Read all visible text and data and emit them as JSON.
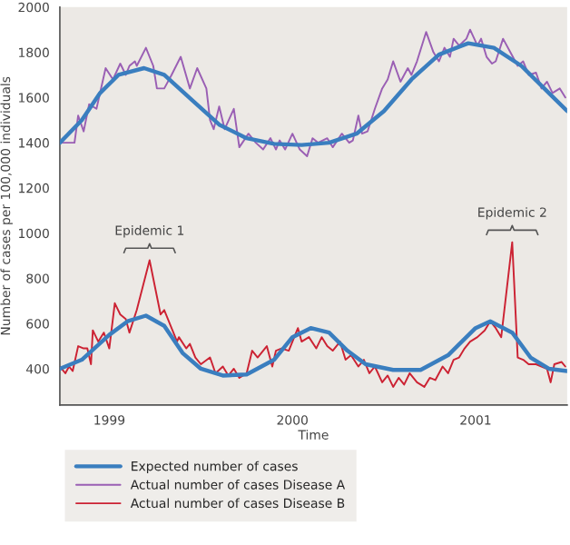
{
  "chart_data": {
    "type": "line",
    "xlabel": "Time",
    "ylabel": "Number of cases per 100,000 individuals",
    "xlim": [
      1998.73,
      2001.5
    ],
    "xticks": [
      1999,
      2000,
      2001
    ],
    "ylim": [
      240,
      2000
    ],
    "yticks": [
      400,
      600,
      800,
      1000,
      1200,
      1400,
      1600,
      1800,
      2000
    ],
    "grid": false,
    "legend": "bottom",
    "marker": "none",
    "line_style": "solid",
    "series": [
      {
        "name": "Expected number of cases",
        "color": "#3a7ebf",
        "x": [
          1998.73,
          1998.85,
          1998.95,
          1999.05,
          1999.19,
          1999.3,
          1999.45,
          1999.6,
          1999.75,
          1999.9,
          2000.05,
          2000.2,
          2000.35,
          2000.5,
          2000.65,
          2000.8,
          2000.96,
          2001.1,
          2001.25,
          2001.4,
          2001.5
        ],
        "values": [
          1400,
          1500,
          1620,
          1700,
          1730,
          1700,
          1590,
          1480,
          1420,
          1395,
          1390,
          1400,
          1440,
          1540,
          1680,
          1790,
          1840,
          1820,
          1740,
          1620,
          1540
        ]
      },
      {
        "name": null,
        "color": "#3a7ebf",
        "x": [
          1998.73,
          1998.85,
          1999.0,
          1999.1,
          1999.2,
          1999.3,
          1999.4,
          1999.5,
          1999.62,
          1999.75,
          1999.9,
          2000.0,
          2000.1,
          2000.2,
          2000.3,
          2000.4,
          2000.55,
          2000.7,
          2000.85,
          2001.0,
          2001.08,
          2001.2,
          2001.3,
          2001.4,
          2001.5
        ],
        "values": [
          400,
          440,
          550,
          610,
          635,
          590,
          470,
          400,
          370,
          375,
          440,
          540,
          580,
          560,
          480,
          420,
          395,
          395,
          460,
          580,
          610,
          560,
          450,
          400,
          390
        ]
      },
      {
        "name": "Actual number of cases Disease A",
        "color": "#9a5fb4",
        "x": [
          1998.73,
          1998.81,
          1998.83,
          1998.86,
          1998.89,
          1998.93,
          1998.98,
          1999.02,
          1999.06,
          1999.09,
          1999.11,
          1999.14,
          1999.15,
          1999.2,
          1999.24,
          1999.26,
          1999.3,
          1999.34,
          1999.39,
          1999.44,
          1999.48,
          1999.53,
          1999.55,
          1999.57,
          1999.6,
          1999.63,
          1999.68,
          1999.71,
          1999.76,
          1999.8,
          1999.84,
          1999.88,
          1999.91,
          1999.93,
          1999.96,
          2000.0,
          2000.04,
          2000.08,
          2000.11,
          2000.14,
          2000.19,
          2000.22,
          2000.27,
          2000.31,
          2000.33,
          2000.36,
          2000.38,
          2000.41,
          2000.45,
          2000.49,
          2000.52,
          2000.55,
          2000.59,
          2000.63,
          2000.65,
          2000.68,
          2000.73,
          2000.77,
          2000.8,
          2000.83,
          2000.86,
          2000.88,
          2000.91,
          2000.95,
          2000.97,
          2001.01,
          2001.03,
          2001.06,
          2001.09,
          2001.11,
          2001.15,
          2001.19,
          2001.23,
          2001.26,
          2001.29,
          2001.33,
          2001.36,
          2001.39,
          2001.42,
          2001.46,
          2001.49
        ],
        "values": [
          1400,
          1400,
          1520,
          1450,
          1570,
          1550,
          1730,
          1680,
          1750,
          1700,
          1740,
          1760,
          1740,
          1820,
          1740,
          1640,
          1640,
          1700,
          1780,
          1640,
          1730,
          1640,
          1500,
          1460,
          1560,
          1460,
          1550,
          1380,
          1440,
          1400,
          1370,
          1420,
          1370,
          1410,
          1370,
          1440,
          1370,
          1340,
          1420,
          1400,
          1420,
          1380,
          1440,
          1400,
          1410,
          1520,
          1440,
          1450,
          1550,
          1640,
          1680,
          1760,
          1670,
          1730,
          1700,
          1760,
          1890,
          1800,
          1760,
          1820,
          1780,
          1860,
          1830,
          1860,
          1900,
          1830,
          1860,
          1780,
          1750,
          1760,
          1860,
          1800,
          1740,
          1760,
          1700,
          1710,
          1640,
          1670,
          1620,
          1640,
          1600
        ]
      },
      {
        "name": "Actual number of cases Disease B",
        "color": "#cc2233",
        "x": [
          1998.73,
          1998.76,
          1998.78,
          1998.8,
          1998.83,
          1998.86,
          1998.88,
          1998.9,
          1998.91,
          1998.94,
          1998.97,
          1999.0,
          1999.03,
          1999.06,
          1999.09,
          1999.11,
          1999.15,
          1999.22,
          1999.28,
          1999.3,
          1999.35,
          1999.37,
          1999.38,
          1999.42,
          1999.44,
          1999.47,
          1999.5,
          1999.55,
          1999.58,
          1999.62,
          1999.65,
          1999.68,
          1999.71,
          1999.75,
          1999.78,
          1999.81,
          1999.86,
          1999.89,
          1999.91,
          1999.94,
          1999.98,
          2000.0,
          2000.03,
          2000.05,
          2000.09,
          2000.13,
          2000.16,
          2000.19,
          2000.22,
          2000.26,
          2000.29,
          2000.32,
          2000.36,
          2000.39,
          2000.42,
          2000.45,
          2000.49,
          2000.52,
          2000.55,
          2000.58,
          2000.61,
          2000.64,
          2000.68,
          2000.72,
          2000.75,
          2000.78,
          2000.82,
          2000.85,
          2000.88,
          2000.91,
          2000.94,
          2000.97,
          2001.01,
          2001.05,
          2001.08,
          2001.11,
          2001.14,
          2001.2,
          2001.23,
          2001.26,
          2001.29,
          2001.33,
          2001.36,
          2001.39,
          2001.41,
          2001.43,
          2001.47,
          2001.49
        ],
        "values": [
          410,
          380,
          410,
          390,
          500,
          490,
          490,
          420,
          570,
          520,
          560,
          490,
          690,
          640,
          620,
          560,
          660,
          880,
          640,
          660,
          560,
          520,
          540,
          490,
          510,
          450,
          420,
          450,
          380,
          410,
          370,
          400,
          360,
          380,
          480,
          450,
          500,
          410,
          480,
          490,
          480,
          520,
          580,
          520,
          540,
          490,
          540,
          500,
          480,
          520,
          440,
          460,
          410,
          440,
          380,
          410,
          340,
          370,
          320,
          360,
          330,
          380,
          340,
          320,
          360,
          350,
          410,
          380,
          440,
          450,
          490,
          520,
          540,
          570,
          610,
          580,
          540,
          960,
          450,
          440,
          420,
          420,
          410,
          400,
          340,
          420,
          430,
          410
        ]
      }
    ],
    "annotations": [
      {
        "text": "Epidemic 1",
        "x": 1999.22,
        "y": 880
      },
      {
        "text": "Epidemic 2",
        "x": 2001.2,
        "y": 960
      }
    ]
  }
}
